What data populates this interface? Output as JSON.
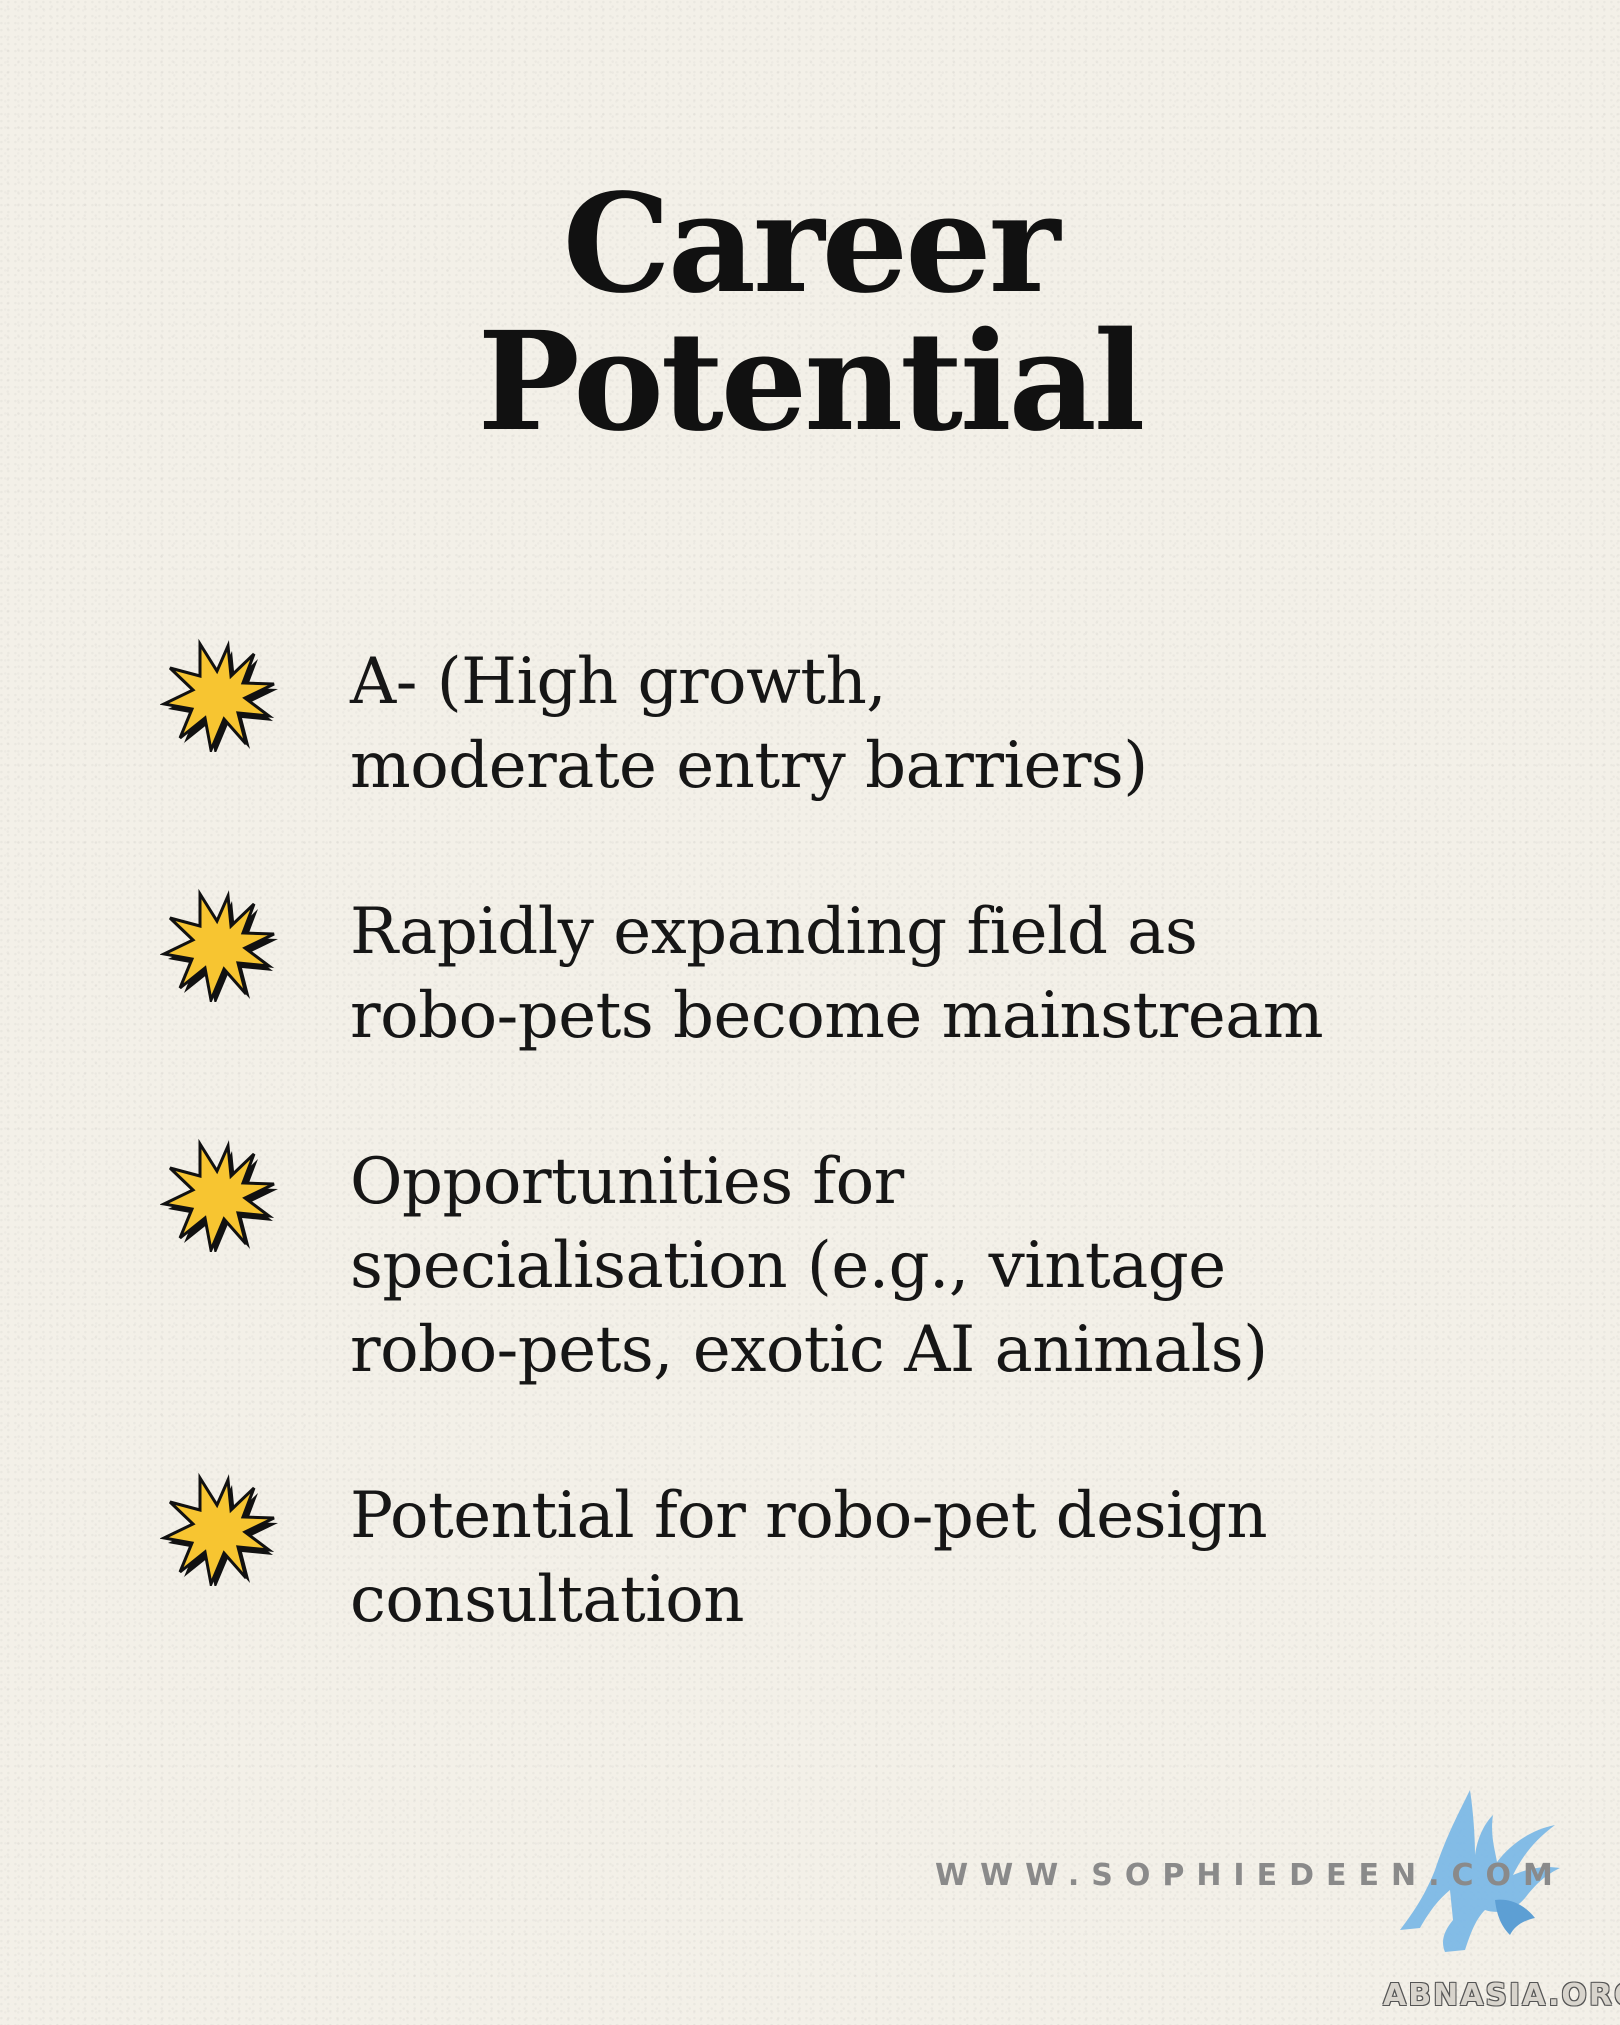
{
  "title": {
    "line1": "Career",
    "line2": "Potential"
  },
  "items": [
    {
      "icon": "star-burst-icon",
      "lines": [
        "A- (High growth,",
        "moderate entry barriers)"
      ]
    },
    {
      "icon": "star-burst-icon",
      "lines": [
        "Rapidly expanding field as",
        "robo-pets become mainstream"
      ]
    },
    {
      "icon": "star-burst-icon",
      "lines": [
        "Opportunities for",
        "specialisation (e.g., vintage",
        "robo-pets, exotic AI animals)"
      ]
    },
    {
      "icon": "star-burst-icon",
      "lines": [
        "Potential for robo-pet design",
        "consultation"
      ]
    }
  ],
  "footer": {
    "website": "WWW.SOPHIEDEEN.COM",
    "watermark": "ABNASIA.ORG"
  },
  "colors": {
    "background": "#f3f0e8",
    "text": "#111111",
    "star_fill": "#f7c531",
    "star_outline": "#111111",
    "logo_blue": "#7cb8e6"
  }
}
